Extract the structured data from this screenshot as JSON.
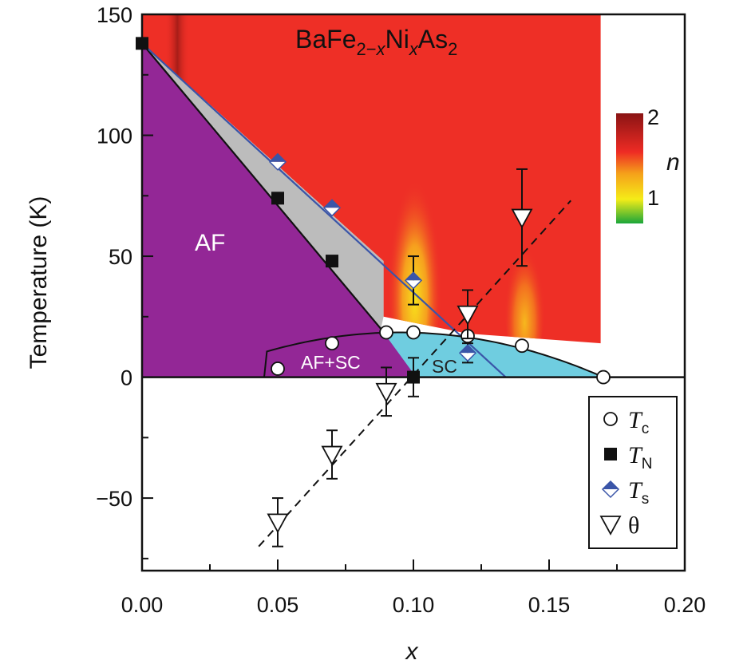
{
  "chart_data": {
    "type": "scatter",
    "title": "BaFe",
    "title_sub1": "2−",
    "title_x1": "x",
    "title_ni": "Ni",
    "title_x2": "x",
    "title_as": "As",
    "title_sub2": "2",
    "xlabel": "x",
    "ylabel": "Temperature (K)",
    "xlim": [
      0.0,
      0.2
    ],
    "ylim": [
      -80,
      150
    ],
    "x_ticks": [
      "0.00",
      "0.05",
      "0.10",
      "0.15",
      "0.20"
    ],
    "x_tick_values": [
      0.0,
      0.05,
      0.1,
      0.15,
      0.2
    ],
    "y_ticks": [
      "150",
      "100",
      "50",
      "0",
      "−50"
    ],
    "y_tick_values": [
      150,
      100,
      50,
      0,
      -50
    ],
    "regions": {
      "af": "AF",
      "af_sc": "AF+SC",
      "sc": "SC"
    },
    "colorbar": {
      "label": "n",
      "max_label": "2",
      "min_label": "1",
      "colors": [
        "#1aa63a",
        "#f5ec18",
        "#f5a21a",
        "#ee2b24",
        "#8a1414"
      ]
    },
    "colors": {
      "af": "#932796",
      "gray": "#bcbcbc",
      "af_sc": "#2b7fc4",
      "sc": "#6fcde0",
      "red": "#ee2f26",
      "ts": "#3a55a8"
    },
    "series": [
      {
        "name": "T",
        "sub": "c",
        "marker": "circle-open",
        "points": [
          [
            0.05,
            3.5
          ],
          [
            0.07,
            14
          ],
          [
            0.09,
            18.5
          ],
          [
            0.1,
            18.5
          ],
          [
            0.12,
            17
          ],
          [
            0.14,
            13
          ],
          [
            0.17,
            0
          ]
        ]
      },
      {
        "name": "T",
        "sub": "N",
        "marker": "square-filled",
        "points": [
          [
            0.0,
            138
          ],
          [
            0.05,
            74
          ],
          [
            0.07,
            48
          ],
          [
            0.1,
            0
          ]
        ],
        "errors": [
          0,
          0,
          0,
          8
        ]
      },
      {
        "name": "T",
        "sub": "s",
        "marker": "diamond-half",
        "points": [
          [
            0.05,
            89
          ],
          [
            0.07,
            70
          ],
          [
            0.1,
            40
          ],
          [
            0.12,
            10
          ]
        ],
        "errors": [
          0,
          0,
          10,
          4
        ]
      },
      {
        "name": "θ",
        "sub": "",
        "marker": "triangle-down-open",
        "points": [
          [
            0.05,
            -60
          ],
          [
            0.07,
            -32
          ],
          [
            0.09,
            -6
          ],
          [
            0.12,
            26
          ],
          [
            0.14,
            66
          ]
        ],
        "errors": [
          10,
          10,
          10,
          10,
          20
        ]
      }
    ],
    "boundary_lines": [
      {
        "from": [
          0.0,
          138
        ],
        "to": [
          0.088,
          20
        ],
        "style": "solid-black"
      },
      {
        "from": [
          0.0,
          138
        ],
        "to": [
          0.134,
          0
        ],
        "style": "solid-blue"
      },
      {
        "from": [
          0.043,
          -70
        ],
        "to": [
          0.158,
          73
        ],
        "style": "dashed"
      }
    ],
    "legend_position": "bottom-right",
    "grid": false
  }
}
